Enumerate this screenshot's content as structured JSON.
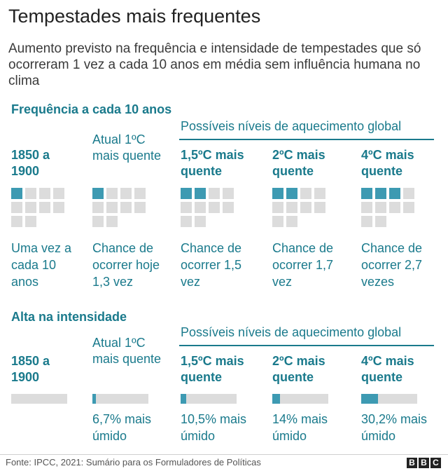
{
  "header": {
    "title": "Tempestades mais frequentes",
    "subtitle": "Aumento previsto na frequência e intensidade de tempestades que só ocorreram 1 vez a cada 10 anos em média sem influência humana no clima"
  },
  "frequency": {
    "section_title": "Frequência a cada 10 anos",
    "global_label": "Possíveis níveis de aquecimento global",
    "columns": [
      {
        "head": "1850 a 1900",
        "foot": "Uma vez a cada 10 anos"
      },
      {
        "head": "Atual 1ºC mais quente",
        "foot": "Chance de ocorrer hoje 1,3 vez"
      },
      {
        "head": "1,5ºC mais quente",
        "foot": "Chance de ocorrer 1,5 vez"
      },
      {
        "head": "2ºC mais quente",
        "foot": "Chance de ocorrer 1,7 vez"
      },
      {
        "head": "4ºC mais quente",
        "foot": "Chance de ocorrer 2,7 vezes"
      }
    ]
  },
  "intensity": {
    "section_title": "Alta na intensidade",
    "global_label": "Possíveis níveis de aquecimento global",
    "columns": [
      {
        "head": "1850 a 1900",
        "foot": ""
      },
      {
        "head": "Atual 1ºC mais quente",
        "foot": "6,7% mais úmido"
      },
      {
        "head": "1,5ºC mais quente",
        "foot": "10,5% mais úmido"
      },
      {
        "head": "2ºC mais quente",
        "foot": "14% mais úmido"
      },
      {
        "head": "4ºC mais quente",
        "foot": "30,2% mais úmido"
      }
    ]
  },
  "footer": {
    "source": "Fonte: IPCC, 2021: Sumário para os Formuladores de Políticas",
    "logo_letters": [
      "B",
      "B",
      "C"
    ]
  },
  "chart_data": [
    {
      "type": "table",
      "title": "Frequência a cada 10 anos",
      "categories": [
        "1850 a 1900",
        "Atual 1ºC mais quente",
        "1,5ºC mais quente",
        "2ºC mais quente",
        "4ºC mais quente"
      ],
      "values": [
        1,
        1.3,
        1.5,
        1.7,
        2.7
      ],
      "grid_total": 10,
      "highlighted_cells": [
        1,
        1,
        2,
        2,
        3
      ],
      "colors": {
        "on": "#3d9ab2",
        "off": "#dcdcdc"
      }
    },
    {
      "type": "bar",
      "title": "Alta na intensidade",
      "categories": [
        "1850 a 1900",
        "Atual 1ºC mais quente",
        "1,5ºC mais quente",
        "2ºC mais quente",
        "4ºC mais quente"
      ],
      "values": [
        0,
        6.7,
        10.5,
        14,
        30.2
      ],
      "colors": {
        "fill": "#3d9ab2",
        "track": "#dcdcdc"
      }
    }
  ]
}
